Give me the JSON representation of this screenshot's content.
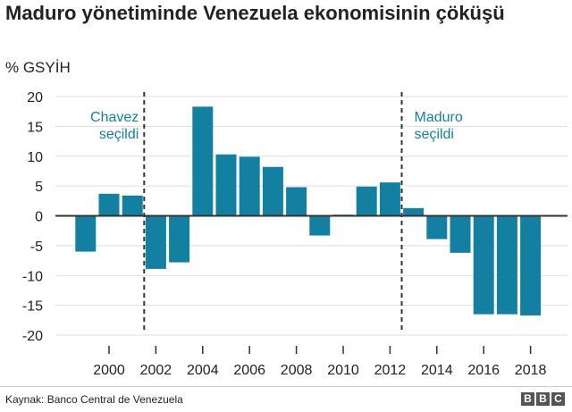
{
  "chart_data": {
    "type": "bar",
    "title": "Maduro yönetiminde Venezuela ekonomisinin çöküşü",
    "ylabel": "% GSYİH",
    "categories": [
      1999,
      2000,
      2001,
      2002,
      2003,
      2004,
      2005,
      2006,
      2007,
      2008,
      2009,
      2010,
      2011,
      2012,
      2013,
      2014,
      2015,
      2016,
      2017,
      2018
    ],
    "values": [
      -6.0,
      3.7,
      3.4,
      -8.9,
      -7.8,
      18.3,
      10.3,
      9.9,
      8.2,
      4.8,
      -3.3,
      0.2,
      4.9,
      5.6,
      1.3,
      -3.9,
      -6.2,
      -16.5,
      -16.5,
      -16.7
    ],
    "ylim": [
      -20,
      20
    ],
    "yticks": [
      20,
      15,
      10,
      5,
      0,
      -5,
      -10,
      -15,
      -20
    ],
    "xticks": [
      2000,
      2002,
      2004,
      2006,
      2008,
      2010,
      2012,
      2014,
      2016,
      2018
    ],
    "grid": true,
    "bar_color": "#1380A1",
    "annotations": [
      {
        "x": 2001.5,
        "lines": [
          "Chavez",
          "seçildi"
        ],
        "align": "left"
      },
      {
        "x": 2012.5,
        "lines": [
          "Maduro",
          "seçildi"
        ],
        "align": "right"
      }
    ],
    "annotation_color": "#1380A1"
  },
  "footer": {
    "source": "Kaynak: Banco Central de Venezuela",
    "logo": [
      "B",
      "B",
      "C"
    ]
  }
}
